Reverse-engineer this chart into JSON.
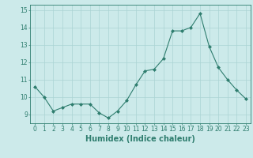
{
  "xlabel": "Humidex (Indice chaleur)",
  "x": [
    0,
    1,
    2,
    3,
    4,
    5,
    6,
    7,
    8,
    9,
    10,
    11,
    12,
    13,
    14,
    15,
    16,
    17,
    18,
    19,
    20,
    21,
    22,
    23
  ],
  "y": [
    10.6,
    10.0,
    9.2,
    9.4,
    9.6,
    9.6,
    9.6,
    9.1,
    8.8,
    9.2,
    9.8,
    10.7,
    11.5,
    11.6,
    12.2,
    13.8,
    13.8,
    14.0,
    14.8,
    12.9,
    11.7,
    11.0,
    10.4,
    9.9
  ],
  "ylim": [
    8.5,
    15.3
  ],
  "yticks": [
    9,
    10,
    11,
    12,
    13,
    14,
    15
  ],
  "line_color": "#2e7d6e",
  "marker_color": "#2e7d6e",
  "bg_color": "#cceaea",
  "grid_color": "#aad4d4",
  "axis_color": "#2e7d6e",
  "tick_color": "#2e7d6e",
  "label_color": "#2e7d6e",
  "tick_fontsize": 5.5,
  "xlabel_fontsize": 7
}
